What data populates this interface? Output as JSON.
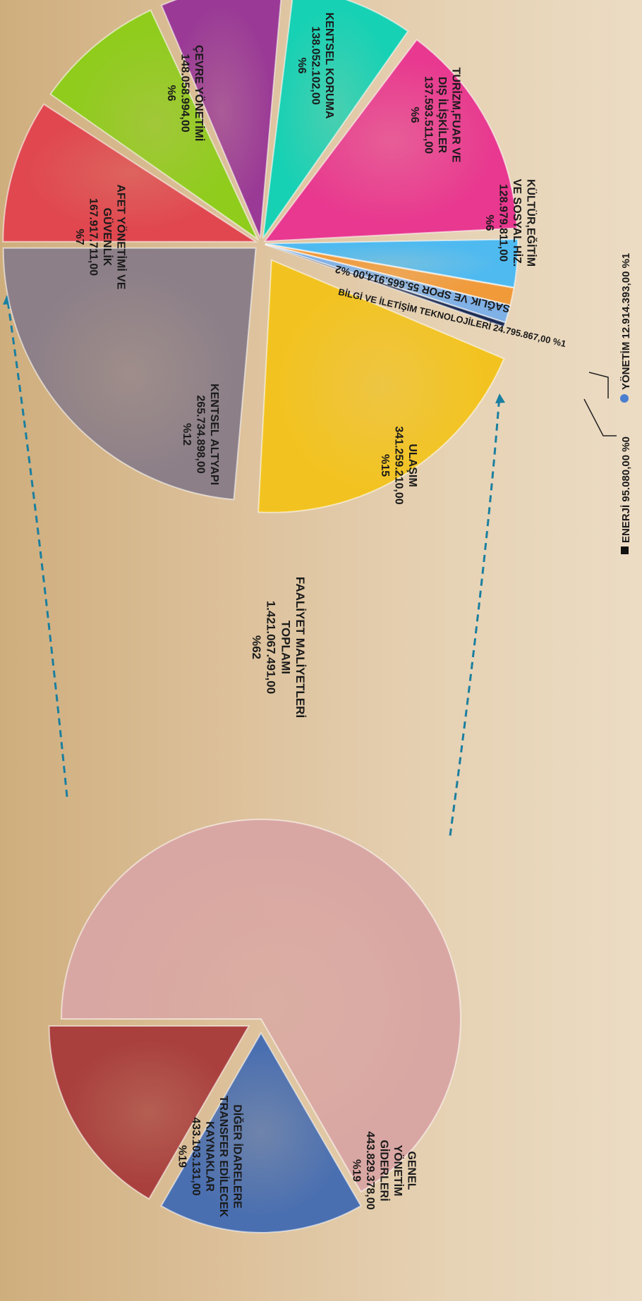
{
  "chart_data": [
    {
      "type": "pie",
      "slices": [
        {
          "key": "diger",
          "label_lines": [
            "DİĞER İDARELERE",
            "TRANSFER EDİLECEK",
            "KAYNAKLAR"
          ],
          "value": "433.103.131,00",
          "percent": "%19",
          "amount": 433103131,
          "color": "#a9403e"
        },
        {
          "key": "genel",
          "label_lines": [
            "GENEL",
            "YÖNETİM",
            "GİDERLERİ"
          ],
          "value": "443.829.378,00",
          "percent": "%19",
          "amount": 443829378,
          "color": "#4a6fb0"
        },
        {
          "key": "faaliyet",
          "label_lines": [
            "FAALİYET MALİYETLERİ",
            "TOPLAMI"
          ],
          "value": "1.421.067.491,00",
          "percent": "%62",
          "amount": 1421067491,
          "color": "#d9a7a3"
        }
      ]
    },
    {
      "type": "pie",
      "slices": [
        {
          "key": "afet",
          "label_lines": [
            "AFET YÖNETİMİ VE",
            "GÜVENLİK"
          ],
          "value": "167.917.711,00",
          "percent": "%7",
          "amount": 167917711,
          "color": "#e0474f"
        },
        {
          "key": "cevre",
          "label_lines": [
            "ÇEVRE YÖNETİMİ"
          ],
          "value": "148.058.994,00",
          "percent": "%6",
          "amount": 148058994,
          "color": "#8fcc1c"
        },
        {
          "key": "koruma",
          "label_lines": [
            "KENTSEL KORUMA"
          ],
          "value": "138.052.102,00",
          "percent": "%6",
          "amount": 138052102,
          "color": "#9a3a96"
        },
        {
          "key": "turizm",
          "label_lines": [
            "TURİZM,FUAR VE",
            "DIŞ İLİŞKİLER"
          ],
          "value": "137.593.511,00",
          "percent": "%6",
          "amount": 137593511,
          "color": "#17d1b4"
        },
        {
          "key": "kultur",
          "label_lines": [
            "KÜLTÜR,EĞİTİM",
            "VE SOSYAL HİZ."
          ],
          "value": "128.979.811,00",
          "percent": "%6",
          "amount": 128979811,
          "color": "#e8388f"
        },
        {
          "key": "saglik",
          "label_lines": [
            "SAĞLIK VE SPOR"
          ],
          "value": "55.665.914,00",
          "percent": "%2",
          "amount": 55665914,
          "color": "#4fbaf0"
        },
        {
          "key": "bilgi",
          "label_lines": [
            "BİLGİ VE İLETİŞİM TEKNOLOJİLERİ"
          ],
          "value": "24.795.867,00",
          "percent": "%1",
          "amount": 24795867,
          "color": "#f09a3a"
        },
        {
          "key": "yonetim",
          "label_lines": [
            "YÖNETİM"
          ],
          "value": "12.914.393,00",
          "percent": "%1",
          "amount": 12914393,
          "color": "#7fb0e6"
        },
        {
          "key": "enerji",
          "label_lines": [
            "ENERJİ"
          ],
          "value": "95.080,00",
          "percent": "%0",
          "amount": 95080,
          "color": "#1c2b55"
        },
        {
          "key": "ulasim",
          "label_lines": [
            "ULAŞIM"
          ],
          "value": "341.259.210,00",
          "percent": "%15",
          "amount": 341259210,
          "color": "#f2c320"
        },
        {
          "key": "altyapi",
          "label_lines": [
            "KENTSEL ALTYAPI"
          ],
          "value": "265.734.898,00",
          "percent": "%12",
          "amount": 265734898,
          "color": "#8c7f88"
        }
      ]
    }
  ],
  "legend": [
    {
      "key": "enerji",
      "text": "ENERJİ  95.080,00  %0",
      "marker_color": "#111111"
    },
    {
      "key": "yonetim",
      "text": "YÖNETİM  12.914.393,00  %1",
      "marker_color": "#4a7fd0"
    }
  ]
}
